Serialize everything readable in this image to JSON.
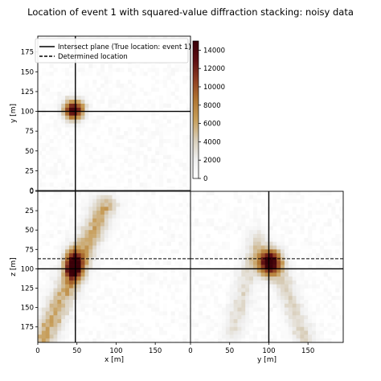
{
  "figure": {
    "title": "Location of event 1 with squared-value diffraction stacking: noisy data"
  },
  "chart_data": [
    {
      "panel": "xy",
      "type": "heatmap",
      "xlabel": "",
      "ylabel": "y [m]",
      "xlim": [
        0,
        195
      ],
      "ylim": [
        195,
        0
      ],
      "y_ticks": [
        "175",
        "150",
        "125",
        "100",
        "75",
        "50",
        "25",
        "0"
      ],
      "y_tick_values": [
        175,
        150,
        125,
        100,
        75,
        50,
        25,
        0
      ],
      "true_location": {
        "x": 48,
        "y": 100
      },
      "hotspots": [
        {
          "cx": 46,
          "cy": 102,
          "rx": 9,
          "ry": 9,
          "peak": 14500
        }
      ]
    },
    {
      "panel": "xz",
      "type": "heatmap",
      "xlabel": "x [m]",
      "ylabel": "z [m]",
      "xlim": [
        0,
        195
      ],
      "ylim": [
        0,
        195
      ],
      "x_ticks": [
        "0",
        "50",
        "100",
        "150"
      ],
      "x_tick_values": [
        0,
        50,
        100,
        150
      ],
      "y_ticks": [
        "0",
        "25",
        "50",
        "75",
        "100",
        "125",
        "150",
        "175"
      ],
      "y_tick_values": [
        0,
        25,
        50,
        75,
        100,
        125,
        150,
        175
      ],
      "true_location": {
        "x": 48,
        "z": 100
      },
      "determined_location": {
        "z": 87
      },
      "hotspots": [
        {
          "cx": 46,
          "cy": 95,
          "rx": 8,
          "ry": 13,
          "peak": 14500
        }
      ],
      "streaks": [
        {
          "x1": 85,
          "y1": 20,
          "x2": 5,
          "y2": 195,
          "w": 11,
          "peak": 6500
        }
      ]
    },
    {
      "panel": "yz",
      "type": "heatmap",
      "xlabel": "y [m]",
      "ylabel": "",
      "xlim": [
        0,
        195
      ],
      "ylim": [
        0,
        195
      ],
      "x_ticks": [
        "0",
        "50",
        "100",
        "150"
      ],
      "x_tick_values": [
        0,
        50,
        100,
        150
      ],
      "true_location": {
        "y": 100,
        "z": 100
      },
      "determined_location": {
        "z": 87
      },
      "hotspots": [
        {
          "cx": 100,
          "cy": 92,
          "rx": 10,
          "ry": 12,
          "peak": 14500
        }
      ],
      "streaks": [
        {
          "x1": 85,
          "y1": 60,
          "x2": 55,
          "y2": 180,
          "w": 9,
          "peak": 3500
        },
        {
          "x1": 108,
          "y1": 90,
          "x2": 148,
          "y2": 195,
          "w": 9,
          "peak": 4000
        }
      ]
    }
  ],
  "colorbar": {
    "ticks": [
      "0",
      "2000",
      "4000",
      "6000",
      "8000",
      "10000",
      "12000",
      "14000"
    ],
    "tick_values": [
      0,
      2000,
      4000,
      6000,
      8000,
      10000,
      12000,
      14000
    ],
    "vmin": 0,
    "vmax": 15000,
    "colors": [
      "#ffffff",
      "#efefef",
      "#d7ccb7",
      "#c79e5a",
      "#b07632",
      "#8f3f22",
      "#5e0f12",
      "#3a0008"
    ]
  },
  "legend": {
    "placement": "top",
    "items": [
      {
        "label": "Intersect plane (True location: event 1)",
        "style": "solid"
      },
      {
        "label": "Determined location",
        "style": "dashed"
      }
    ]
  }
}
